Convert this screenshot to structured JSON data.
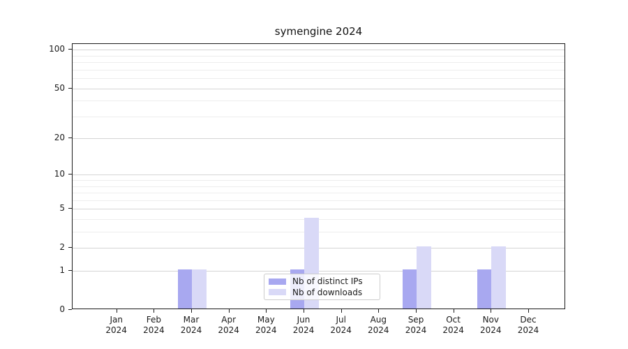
{
  "title": "symengine 2024",
  "chart_data": {
    "type": "bar",
    "title": "symengine 2024",
    "categories": [
      "Jan 2024",
      "Feb 2024",
      "Mar 2024",
      "Apr 2024",
      "May 2024",
      "Jun 2024",
      "Jul 2024",
      "Aug 2024",
      "Sep 2024",
      "Oct 2024",
      "Nov 2024",
      "Dec 2024"
    ],
    "series": [
      {
        "name": "Nb of distinct IPs",
        "color": "#a8a8f0",
        "values": [
          0,
          0,
          1,
          0,
          0,
          1,
          0,
          0,
          1,
          0,
          1,
          0
        ]
      },
      {
        "name": "Nb of downloads",
        "color": "#d9d9f7",
        "values": [
          0,
          0,
          1,
          0,
          0,
          4,
          0,
          0,
          2,
          0,
          2,
          0
        ]
      }
    ],
    "xlabel": "",
    "ylabel": "",
    "yscale": "log1p",
    "ylim": [
      0,
      111
    ],
    "yticks": [
      0,
      1,
      2,
      5,
      10,
      20,
      50,
      100
    ],
    "minor_yticks": [
      3,
      4,
      6,
      7,
      8,
      9,
      30,
      40,
      60,
      70,
      80,
      90
    ],
    "grid": "horizontal-major-and-minor",
    "legend_position": "lower center"
  },
  "legend": {
    "items": [
      "Nb of distinct IPs",
      "Nb of downloads"
    ]
  },
  "colors": {
    "series_dark": "#a8a8f0",
    "series_light": "#d9d9f7",
    "grid_major": "#d5d5d5",
    "grid_minor": "#ededed",
    "spine": "#1a1a1a",
    "legend_border": "#cccccc"
  }
}
